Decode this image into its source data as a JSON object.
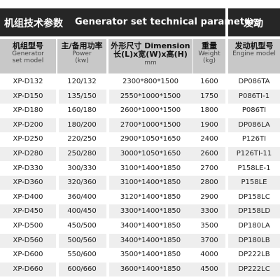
{
  "header": {
    "title_cn": "机组技术参数",
    "title_en": "Generator set technical parameters",
    "right_title": "发动"
  },
  "columns": [
    {
      "cn": "机组型号",
      "en1": "Generator",
      "en2": "set model"
    },
    {
      "cn": "主/备用功率",
      "en1": "Power",
      "en2": "(kw)"
    },
    {
      "cn": "外形尺寸 Dimension",
      "en1": "长(L)x宽(W)x高(H)",
      "en2": "mm"
    },
    {
      "cn": "重量",
      "en1": "Weight",
      "en2": "(kg)"
    },
    {
      "cn": "发动机型号",
      "en1": "Engine model",
      "en2": ""
    }
  ],
  "rows": [
    {
      "model": "XP-D132",
      "power": "120/132",
      "dim": "2300*800*1500",
      "weight": "1600",
      "engine": "DP086TA"
    },
    {
      "model": "XP-D150",
      "power": "135/150",
      "dim": "2550*1000*1500",
      "weight": "1750",
      "engine": "P086TI-1"
    },
    {
      "model": "XP-D180",
      "power": "160/180",
      "dim": "2600*1000*1500",
      "weight": "1800",
      "engine": "P086TI"
    },
    {
      "model": "XP-D200",
      "power": "180/200",
      "dim": "2700*1000*1500",
      "weight": "1900",
      "engine": "DP086LA"
    },
    {
      "model": "XP-D250",
      "power": "220/250",
      "dim": "2900*1050*1650",
      "weight": "2400",
      "engine": "P126TI"
    },
    {
      "model": "XP-D280",
      "power": "250/280",
      "dim": "3000*1050*1650",
      "weight": "2600",
      "engine": "P126TI-11"
    },
    {
      "model": "XP-D330",
      "power": "300/330",
      "dim": "3100*1400*1850",
      "weight": "2700",
      "engine": "P158LE-1"
    },
    {
      "model": "XP-D360",
      "power": "320/360",
      "dim": "3100*1400*1850",
      "weight": "2800",
      "engine": "P158LE"
    },
    {
      "model": "XP-D400",
      "power": "360/400",
      "dim": "3120*1400*1850",
      "weight": "2900",
      "engine": "DP158LC"
    },
    {
      "model": "XP-D450",
      "power": "400/450",
      "dim": "3300*1400*1850",
      "weight": "3300",
      "engine": "DP158LD"
    },
    {
      "model": "XP-D500",
      "power": "450/500",
      "dim": "3400*1400*1850",
      "weight": "3500",
      "engine": "DP180LA"
    },
    {
      "model": "XP-D560",
      "power": "500/560",
      "dim": "3400*1400*1850",
      "weight": "3700",
      "engine": "DP180LB"
    },
    {
      "model": "XP-D600",
      "power": "550/600",
      "dim": "3500*1400*1850",
      "weight": "4000",
      "engine": "DP222LB"
    },
    {
      "model": "XP-D660",
      "power": "600/660",
      "dim": "3600*1400*1850",
      "weight": "4500",
      "engine": "DP222LC"
    }
  ]
}
